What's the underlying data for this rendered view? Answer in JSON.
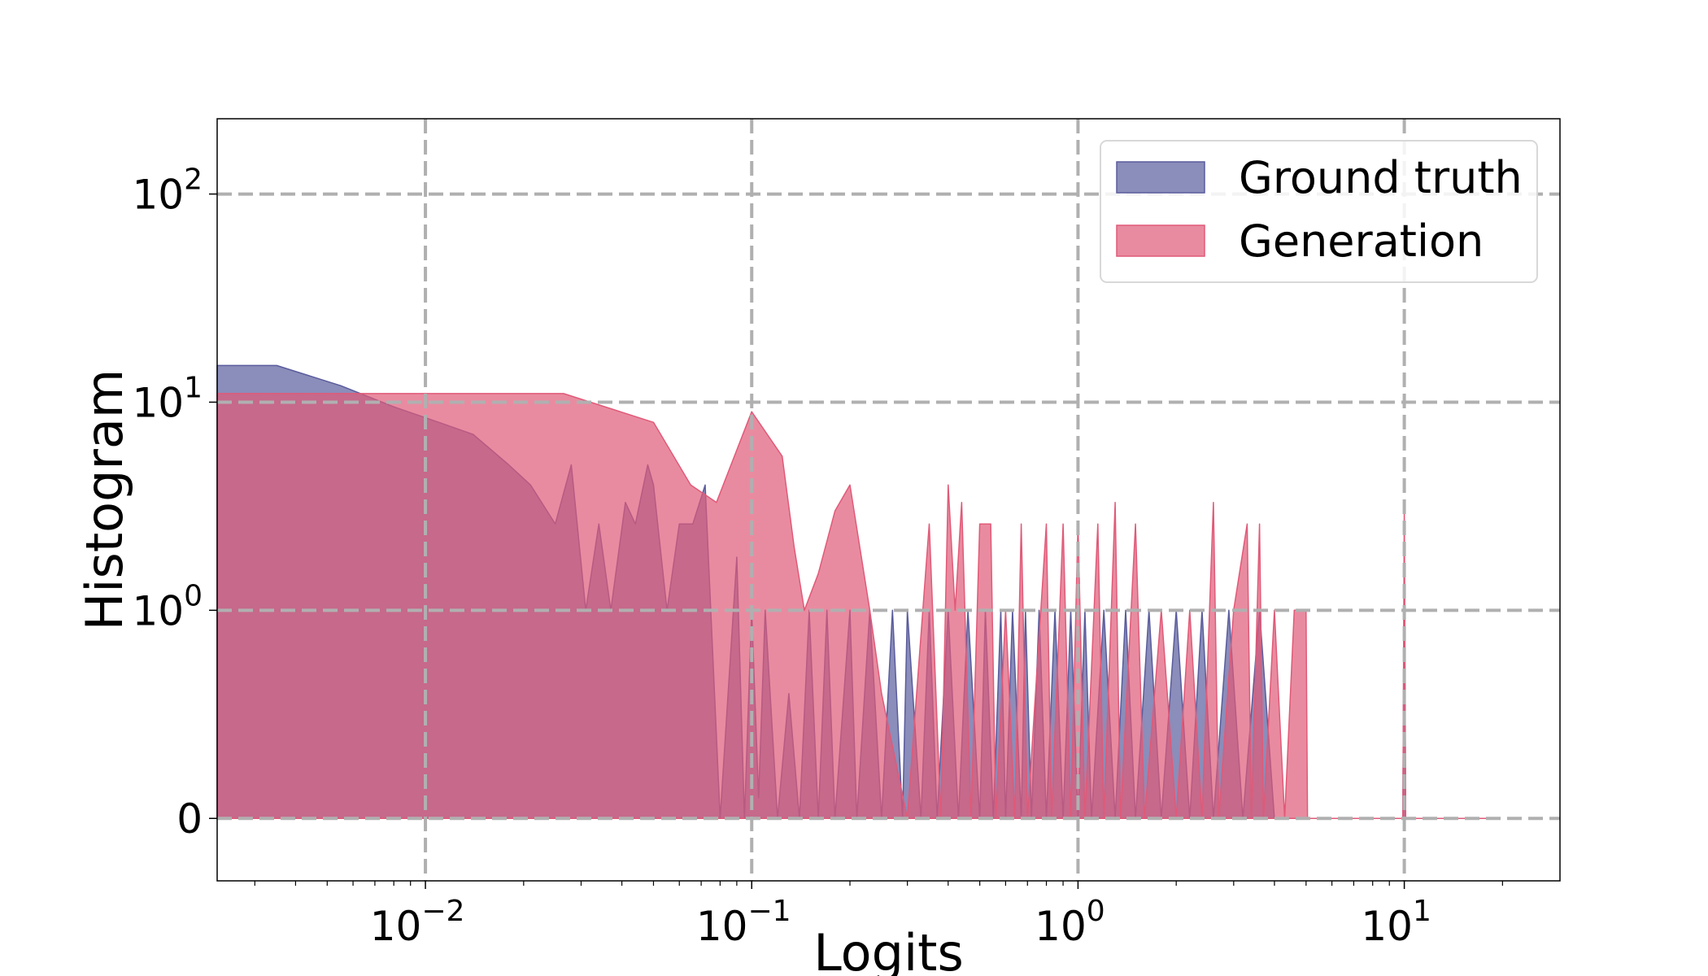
{
  "chart_data": {
    "type": "area",
    "xlabel": "Logits",
    "ylabel": "Histogram",
    "xscale": "log",
    "yscale": "symlog",
    "xlim": [
      0.0023,
      30
    ],
    "ylim": [
      -0.3,
      230
    ],
    "grid": true,
    "legend_position": "top-right",
    "x_ticks": [
      {
        "value": 0.01,
        "base": "10",
        "exp": "−2"
      },
      {
        "value": 0.1,
        "base": "10",
        "exp": "−1"
      },
      {
        "value": 1,
        "base": "10",
        "exp": "0"
      },
      {
        "value": 10,
        "base": "10",
        "exp": "1"
      }
    ],
    "y_ticks": [
      {
        "value": 0,
        "base": "0",
        "exp": ""
      },
      {
        "value": 1,
        "base": "10",
        "exp": "0"
      },
      {
        "value": 10,
        "base": "10",
        "exp": "1"
      },
      {
        "value": 100,
        "base": "10",
        "exp": "2"
      }
    ],
    "series": [
      {
        "name": "Ground truth",
        "color": "#5a5c9c",
        "points": [
          [
            0.0023,
            15
          ],
          [
            0.0035,
            15
          ],
          [
            0.0055,
            12
          ],
          [
            0.008,
            9.5
          ],
          [
            0.011,
            8
          ],
          [
            0.014,
            7
          ],
          [
            0.018,
            5
          ],
          [
            0.021,
            4
          ],
          [
            0.025,
            2.6
          ],
          [
            0.028,
            5
          ],
          [
            0.031,
            1
          ],
          [
            0.034,
            2.6
          ],
          [
            0.037,
            1
          ],
          [
            0.041,
            3.3
          ],
          [
            0.044,
            2.6
          ],
          [
            0.048,
            5
          ],
          [
            0.05,
            4
          ],
          [
            0.055,
            1
          ],
          [
            0.06,
            2.6
          ],
          [
            0.066,
            2.6
          ],
          [
            0.072,
            4
          ],
          [
            0.08,
            0
          ],
          [
            0.09,
            1.8
          ],
          [
            0.095,
            0
          ],
          [
            0.1,
            1
          ],
          [
            0.105,
            0.1
          ],
          [
            0.11,
            1
          ],
          [
            0.12,
            0
          ],
          [
            0.13,
            0.6
          ],
          [
            0.14,
            0
          ],
          [
            0.15,
            1
          ],
          [
            0.16,
            0
          ],
          [
            0.17,
            1
          ],
          [
            0.18,
            0
          ],
          [
            0.2,
            1
          ],
          [
            0.21,
            0
          ],
          [
            0.23,
            1
          ],
          [
            0.25,
            0
          ],
          [
            0.27,
            1
          ],
          [
            0.29,
            0
          ],
          [
            0.3,
            1
          ],
          [
            0.33,
            0
          ],
          [
            0.35,
            1
          ],
          [
            0.37,
            0
          ],
          [
            0.4,
            1
          ],
          [
            0.43,
            0
          ],
          [
            0.46,
            1
          ],
          [
            0.5,
            0
          ],
          [
            0.52,
            1
          ],
          [
            0.55,
            0
          ],
          [
            0.58,
            1
          ],
          [
            0.6,
            0
          ],
          [
            0.63,
            1
          ],
          [
            0.67,
            0
          ],
          [
            0.69,
            1
          ],
          [
            0.72,
            0
          ],
          [
            0.76,
            1
          ],
          [
            0.8,
            0
          ],
          [
            0.85,
            1
          ],
          [
            0.9,
            0
          ],
          [
            0.95,
            1
          ],
          [
            1.0,
            0
          ],
          [
            1.05,
            1
          ],
          [
            1.1,
            0
          ],
          [
            1.2,
            1
          ],
          [
            1.3,
            0
          ],
          [
            1.4,
            1
          ],
          [
            1.5,
            0
          ],
          [
            1.65,
            1
          ],
          [
            1.8,
            0
          ],
          [
            2.0,
            1
          ],
          [
            2.2,
            0
          ],
          [
            2.4,
            1
          ],
          [
            2.6,
            0
          ],
          [
            2.9,
            1
          ],
          [
            3.2,
            0
          ],
          [
            3.6,
            1
          ],
          [
            4.0,
            0
          ],
          [
            5.0,
            0
          ],
          [
            9.9,
            0
          ],
          [
            10.0,
            2
          ],
          [
            10.1,
            0
          ],
          [
            18,
            0
          ]
        ]
      },
      {
        "name": "Generation",
        "color": "#e05a78",
        "points": [
          [
            0.0023,
            11
          ],
          [
            0.0265,
            11
          ],
          [
            0.05,
            8
          ],
          [
            0.065,
            4
          ],
          [
            0.078,
            3.3
          ],
          [
            0.1,
            9
          ],
          [
            0.124,
            5.5
          ],
          [
            0.135,
            2
          ],
          [
            0.145,
            1
          ],
          [
            0.16,
            1.5
          ],
          [
            0.18,
            3
          ],
          [
            0.2,
            4
          ],
          [
            0.23,
            1
          ],
          [
            0.25,
            0.6
          ],
          [
            0.3,
            0
          ],
          [
            0.35,
            2.6
          ],
          [
            0.38,
            0
          ],
          [
            0.4,
            4
          ],
          [
            0.42,
            1
          ],
          [
            0.44,
            3.3
          ],
          [
            0.47,
            0
          ],
          [
            0.5,
            2.6
          ],
          [
            0.54,
            2.6
          ],
          [
            0.56,
            0
          ],
          [
            0.6,
            1
          ],
          [
            0.64,
            0
          ],
          [
            0.67,
            2.6
          ],
          [
            0.7,
            0
          ],
          [
            0.8,
            2.6
          ],
          [
            0.83,
            0
          ],
          [
            0.9,
            2.6
          ],
          [
            0.95,
            0
          ],
          [
            1.0,
            2.6
          ],
          [
            1.05,
            0
          ],
          [
            1.15,
            2.6
          ],
          [
            1.2,
            0
          ],
          [
            1.3,
            3.3
          ],
          [
            1.35,
            0
          ],
          [
            1.5,
            2.6
          ],
          [
            1.6,
            0
          ],
          [
            1.8,
            1
          ],
          [
            2.0,
            0
          ],
          [
            2.2,
            1
          ],
          [
            2.4,
            0
          ],
          [
            2.6,
            3.3
          ],
          [
            2.7,
            0
          ],
          [
            3.0,
            1
          ],
          [
            3.3,
            2.6
          ],
          [
            3.4,
            0
          ],
          [
            3.6,
            2.6
          ],
          [
            3.7,
            0
          ],
          [
            4.0,
            1
          ],
          [
            4.3,
            0
          ],
          [
            4.6,
            1
          ],
          [
            5.0,
            1
          ],
          [
            5.05,
            0
          ],
          [
            9.9,
            0
          ],
          [
            10.0,
            3.3
          ],
          [
            10.1,
            0
          ],
          [
            18,
            0
          ]
        ]
      }
    ]
  }
}
